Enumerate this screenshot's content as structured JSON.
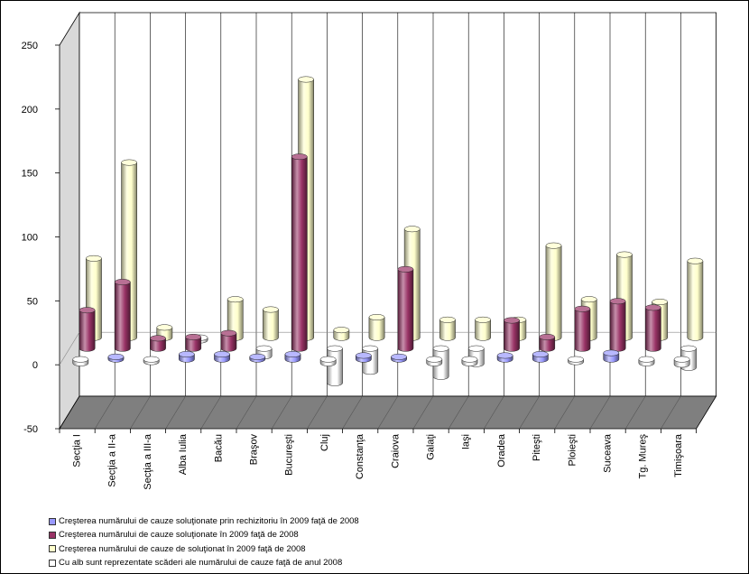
{
  "chart_data": {
    "type": "bar",
    "three_d": true,
    "cylinders": true,
    "categories": [
      "Secţia I",
      "Secţia a II-a",
      "Secţia a III-a",
      "Alba Iulia",
      "Bacău",
      "Braşov",
      "Bucureşti",
      "Cluj",
      "Constanţa",
      "Craiova",
      "Galaţi",
      "Iaşi",
      "Oradea",
      "Piteşti",
      "Ploieşti",
      "Suceava",
      "Tg. Mureş",
      "Timişoara"
    ],
    "series": [
      {
        "name": "Creşterea numărului de cauze soluţionate prin rechizitoriu în 2009 faţă de 2008",
        "color": "#9999FF",
        "values": [
          -3,
          2,
          -2,
          4,
          4,
          2,
          4,
          -3,
          3,
          2,
          -3,
          -3,
          3,
          4,
          -2,
          5,
          -3,
          -4
        ]
      },
      {
        "name": "Creşterea numărului de cauze soluţionate în 2009 faţă de 2008",
        "color": "#993366",
        "values": [
          30,
          52,
          8,
          9,
          12,
          -6,
          150,
          -27,
          -18,
          62,
          -22,
          -12,
          22,
          9,
          31,
          37,
          32,
          -15
        ]
      },
      {
        "name": "Creşterea numărului de cauze de soluţionat în 2009 faţă de 2008",
        "color": "#FFFFCC",
        "values": [
          62,
          137,
          8,
          -2,
          30,
          22,
          202,
          6,
          16,
          85,
          14,
          14,
          14,
          72,
          30,
          65,
          28,
          60
        ]
      }
    ],
    "negative": {
      "label": "Cu alb sunt reprezentate scăderi ale numărului de cauze faţă de anul 2008",
      "color": "#FFFFFF"
    },
    "ylim": [
      -50,
      250
    ],
    "yticks": [
      -50,
      0,
      50,
      100,
      150,
      200,
      250
    ],
    "legend_position": "bottom-left",
    "grid": {
      "category_lines": true,
      "value_lines": false
    }
  }
}
